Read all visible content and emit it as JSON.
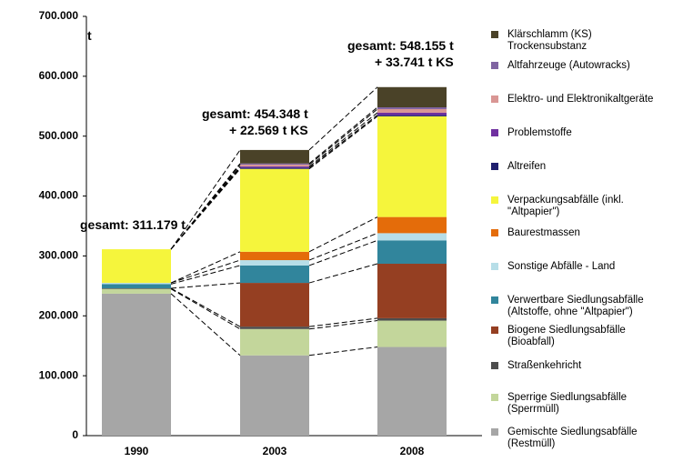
{
  "chart_data": {
    "type": "bar",
    "stacked": true,
    "categories": [
      "1990",
      "2003",
      "2008"
    ],
    "ylim": [
      0,
      700000
    ],
    "yticks": [
      {
        "value": 0,
        "label": "0"
      },
      {
        "value": 100000,
        "label": "100.000"
      },
      {
        "value": 200000,
        "label": "200.000"
      },
      {
        "value": 300000,
        "label": "300.000"
      },
      {
        "value": 400000,
        "label": "400.000"
      },
      {
        "value": 500000,
        "label": "500.000"
      },
      {
        "value": 600000,
        "label": "600.000"
      },
      {
        "value": 700000,
        "label": "700.000"
      }
    ],
    "grid": false,
    "annotations": [
      "t",
      "gesamt: 311.179 t",
      "gesamt: 454.348 t\n+ 22.569 t KS",
      "gesamt: 548.155 t\n+ 33.741 t KS"
    ],
    "series": [
      {
        "name": "Gemischte Siedlungsabfälle\n(Restmüll)",
        "color": "#a6a6a6",
        "values": [
          237000,
          134000,
          148000
        ]
      },
      {
        "name": "Sperrige Siedlungsabfälle\n(Sperrmüll)",
        "color": "#c3d69b",
        "values": [
          8000,
          44000,
          44000
        ]
      },
      {
        "name": "Straßenkehricht",
        "color": "#4d4d4d",
        "values": [
          1000,
          4000,
          4000
        ]
      },
      {
        "name": "Biogene Siedlungsabfälle\n(Bioabfall)",
        "color": "#953f22",
        "values": [
          0,
          73000,
          91000
        ]
      },
      {
        "name": "Verwertbare Siedlungsabfälle\n(Altstoffe, ohne \"Altpapier\")",
        "color": "#31859c",
        "values": [
          7000,
          29000,
          39000
        ]
      },
      {
        "name": "Sonstige Abfälle - Land",
        "color": "#b7dee8",
        "values": [
          2000,
          9000,
          12000
        ]
      },
      {
        "name": "Baurestmassen",
        "color": "#e46c0a",
        "values": [
          0,
          14000,
          27000
        ]
      },
      {
        "name": "Verpackungsabfälle (inkl.\n\"Altpapier\")",
        "color": "#f5f53c",
        "values": [
          56179,
          138348,
          168155
        ]
      },
      {
        "name": "Altreifen",
        "color": "#1f1f6e",
        "values": [
          0,
          2000,
          2000
        ]
      },
      {
        "name": "Problemstoffe",
        "color": "#7030a0",
        "values": [
          0,
          2000,
          4000
        ]
      },
      {
        "name": "Elektro- und Elektronikaltgeräte",
        "color": "#d99694",
        "values": [
          0,
          3000,
          6000
        ]
      },
      {
        "name": "Altfahrzeuge (Autowracks)",
        "color": "#8064a2",
        "values": [
          0,
          2000,
          3000
        ]
      },
      {
        "name": "Klärschlamm (KS)\nTrockensubstanz",
        "color": "#4a4228",
        "values": [
          0,
          22569,
          33741
        ]
      }
    ]
  }
}
